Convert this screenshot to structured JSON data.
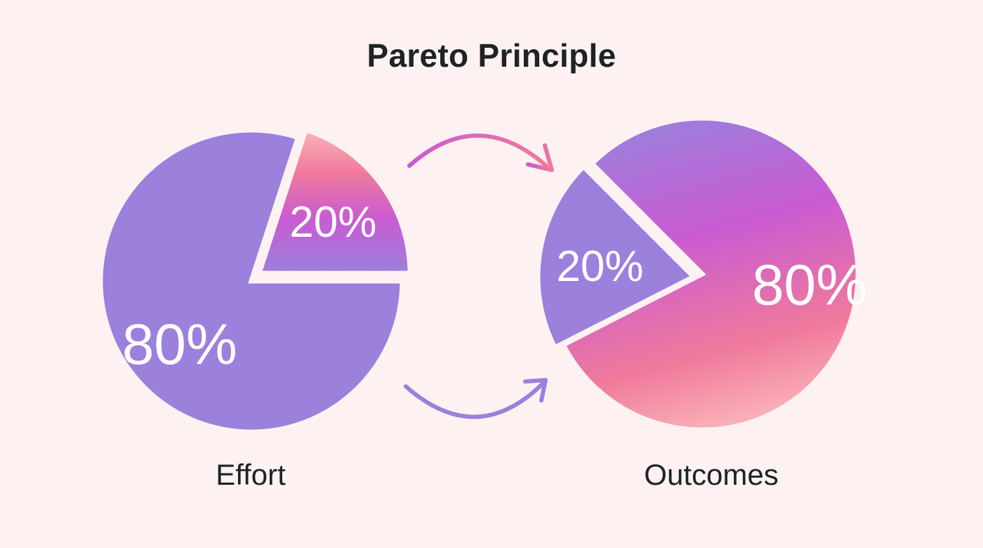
{
  "title": "Pareto Principle",
  "colors": {
    "background": "#fdf2f1",
    "lavender": "#9b80dc",
    "magenta": "#c95bd3",
    "pink": "#f07a9b",
    "light_pink": "#fbb3ba",
    "text": "#1d2327",
    "slice_border": "#fdf2f1"
  },
  "chart_data": [
    {
      "type": "pie",
      "caption": "Effort",
      "slices": [
        {
          "label": "80%",
          "value": 80
        },
        {
          "label": "20%",
          "value": 20
        }
      ]
    },
    {
      "type": "pie",
      "caption": "Outcomes",
      "slices": [
        {
          "label": "80%",
          "value": 80
        },
        {
          "label": "20%",
          "value": 20
        }
      ]
    }
  ],
  "connectors": [
    {
      "name": "top-arrow",
      "icon": "curved-arrow-icon"
    },
    {
      "name": "bottom-arrow",
      "icon": "curved-arrow-icon"
    }
  ]
}
